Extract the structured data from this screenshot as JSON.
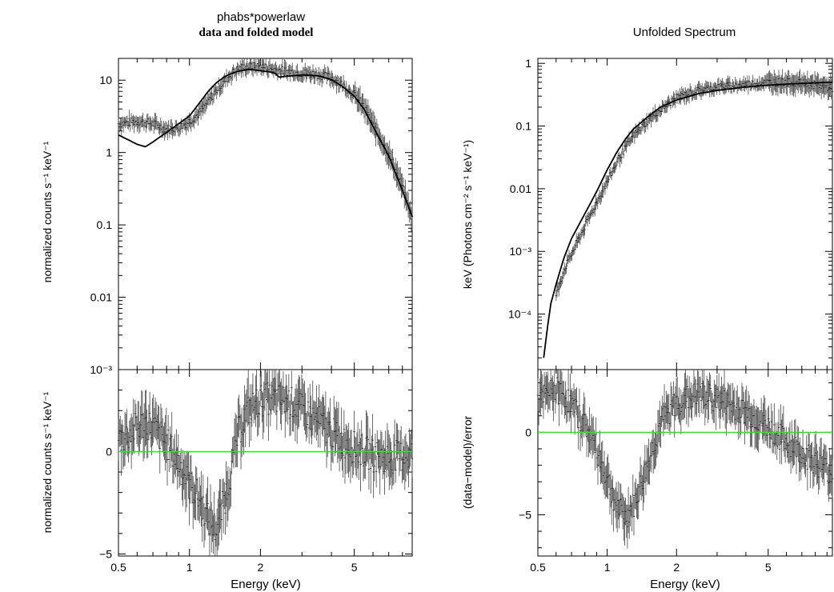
{
  "chart_data": [
    {
      "id": "left",
      "type": "scatter",
      "title": "phabs*powerlaw",
      "subtitle": "data and folded model",
      "xlabel": "Energy (keV)",
      "xscale": "log",
      "xlim": [
        0.5,
        8.8
      ],
      "xticks": [
        "0.5",
        "1",
        "2",
        "5"
      ],
      "top": {
        "ylabel": "normalized counts s⁻¹ keV⁻¹",
        "yscale": "log",
        "ylim": [
          0.001,
          20
        ],
        "yticks": [
          "10",
          "1",
          "0.1",
          "0.01",
          "10⁻³"
        ],
        "series": [
          {
            "role": "model",
            "x": [
              0.5,
              0.55,
              0.6,
              0.65,
              0.7,
              0.8,
              0.9,
              1.0,
              1.1,
              1.2,
              1.3,
              1.4,
              1.5,
              1.6,
              1.7,
              1.8,
              2.0,
              2.2,
              2.3,
              2.4,
              2.5,
              2.8,
              3.0,
              3.5,
              4.0,
              4.5,
              5.0,
              5.5,
              6.0,
              7.0,
              8.0,
              8.8
            ],
            "y": [
              1.75,
              1.5,
              1.3,
              1.2,
              1.4,
              1.9,
              2.5,
              3.2,
              4.8,
              7.0,
              9.2,
              11.0,
              12.3,
              13.2,
              13.8,
              14.1,
              13.5,
              13.0,
              12.5,
              11.0,
              11.2,
              11.6,
              11.8,
              11.5,
              10.2,
              8.0,
              6.0,
              4.0,
              2.3,
              0.9,
              0.3,
              0.13
            ]
          },
          {
            "role": "data",
            "x": [
              0.5,
              0.55,
              0.6,
              0.65,
              0.7,
              0.8,
              0.9,
              1.0,
              1.1,
              1.2,
              1.3,
              1.4,
              1.5,
              1.6,
              1.7,
              1.8,
              2.0,
              2.2,
              2.5,
              2.8,
              3.0,
              3.5,
              4.0,
              4.5,
              5.0,
              5.5,
              6.0,
              7.0,
              8.0,
              8.8
            ],
            "y": [
              2.5,
              2.6,
              2.7,
              2.6,
              2.5,
              2.1,
              2.2,
              2.7,
              3.5,
              5.0,
              7.2,
              9.5,
              12.0,
              14.0,
              15.0,
              15.5,
              15.5,
              14.5,
              13.5,
              13.0,
              12.5,
              12.0,
              10.8,
              8.5,
              6.3,
              4.2,
              2.4,
              0.95,
              0.33,
              0.12
            ]
          }
        ]
      },
      "bottom": {
        "ylabel": "normalized counts s⁻¹ keV⁻¹",
        "ylim": [
          -5.1,
          4.0
        ],
        "yticks": [
          "0",
          "−5"
        ],
        "series": [
          {
            "role": "zero_line",
            "color": "#33dd33",
            "y": 0
          },
          {
            "role": "residuals",
            "x": [
              0.5,
              0.55,
              0.6,
              0.65,
              0.7,
              0.8,
              0.9,
              1.0,
              1.1,
              1.2,
              1.3,
              1.4,
              1.5,
              1.6,
              1.7,
              1.8,
              2.0,
              2.2,
              2.5,
              2.8,
              3.0,
              3.5,
              4.0,
              4.5,
              5.0,
              5.5,
              6.0,
              7.0,
              8.0,
              8.8
            ],
            "y": [
              0.6,
              0.8,
              1.2,
              1.4,
              1.2,
              0.4,
              -0.5,
              -1.6,
              -2.3,
              -3.3,
              -3.8,
              -2.5,
              -1.0,
              0.8,
              1.6,
              2.1,
              2.5,
              2.6,
              2.5,
              2.3,
              2.0,
              1.5,
              0.9,
              0.5,
              0.2,
              0.0,
              -0.2,
              -0.3,
              -0.2,
              -0.1
            ]
          }
        ]
      }
    },
    {
      "id": "right",
      "type": "scatter",
      "title": "Unfolded Spectrum",
      "xlabel": "Energy (keV)",
      "xscale": "log",
      "xlim": [
        0.5,
        9.5
      ],
      "xticks": [
        "0.5",
        "1",
        "2",
        "5"
      ],
      "top": {
        "ylabel": "keV (Photons cm⁻² s⁻¹ keV⁻¹)",
        "yscale": "log",
        "ylim": [
          1.3e-05,
          1.2
        ],
        "yticks": [
          "1",
          "0.1",
          "0.01",
          "10⁻³",
          "10⁻⁴"
        ],
        "series": [
          {
            "role": "model",
            "x": [
              0.53,
              0.55,
              0.57,
              0.6,
              0.65,
              0.7,
              0.8,
              0.9,
              1.0,
              1.1,
              1.2,
              1.3,
              1.5,
              1.7,
              2.0,
              2.5,
              3.0,
              4.0,
              5.0,
              7.0,
              9.5
            ],
            "y": [
              2e-05,
              6e-05,
              0.00015,
              0.0003,
              0.0008,
              0.0016,
              0.004,
              0.009,
              0.02,
              0.038,
              0.062,
              0.09,
              0.14,
              0.2,
              0.26,
              0.33,
              0.37,
              0.42,
              0.45,
              0.48,
              0.5
            ]
          },
          {
            "role": "data",
            "x": [
              0.6,
              0.65,
              0.7,
              0.8,
              0.9,
              1.0,
              1.1,
              1.2,
              1.3,
              1.5,
              1.7,
              2.0,
              2.5,
              3.0,
              4.0,
              5.0,
              6.0,
              7.0,
              8.0,
              9.5
            ],
            "y": [
              0.0002,
              0.0005,
              0.0009,
              0.0025,
              0.006,
              0.013,
              0.026,
              0.045,
              0.07,
              0.12,
              0.18,
              0.28,
              0.37,
              0.42,
              0.46,
              0.5,
              0.5,
              0.48,
              0.45,
              0.4
            ]
          }
        ]
      },
      "bottom": {
        "ylabel": "(data−model)/error",
        "ylim": [
          -7.5,
          3.8
        ],
        "yticks": [
          "0",
          "−5"
        ],
        "series": [
          {
            "role": "zero_line",
            "color": "#33dd33",
            "y": 0
          },
          {
            "role": "residuals",
            "x": [
              0.5,
              0.55,
              0.6,
              0.65,
              0.7,
              0.8,
              0.9,
              1.0,
              1.1,
              1.2,
              1.3,
              1.5,
              1.7,
              2.0,
              2.5,
              3.0,
              4.0,
              5.0,
              6.0,
              7.0,
              8.0,
              9.5
            ],
            "y": [
              1.8,
              2.3,
              2.6,
              2.3,
              1.6,
              0.5,
              -1.0,
              -2.8,
              -4.5,
              -5.2,
              -4.5,
              -2.0,
              0.5,
              1.8,
              2.3,
              2.0,
              1.2,
              0.3,
              -0.6,
              -1.2,
              -1.8,
              -2.5
            ]
          }
        ]
      }
    }
  ]
}
